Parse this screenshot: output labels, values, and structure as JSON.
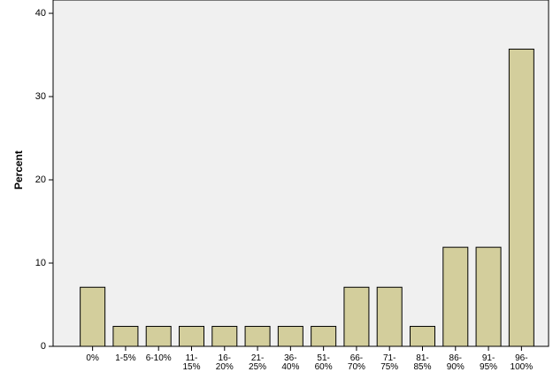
{
  "chart_data": {
    "type": "bar",
    "y_label": "Percent",
    "categories": [
      "0%",
      "1-5%",
      "6-10%",
      "11-\n15%",
      "16-\n20%",
      "21-\n25%",
      "36-\n40%",
      "51-\n60%",
      "66-\n70%",
      "71-\n75%",
      "81-\n85%",
      "86-\n90%",
      "91-\n95%",
      "96-\n100%"
    ],
    "values": [
      7.1,
      2.4,
      2.4,
      2.4,
      2.4,
      2.4,
      2.4,
      2.4,
      7.1,
      7.1,
      2.4,
      11.9,
      11.9,
      35.7
    ],
    "color": "#d3ce9c",
    "ylim": [
      0,
      41.6
    ],
    "yticks": [
      0,
      10,
      20,
      30,
      40
    ],
    "grid": false
  }
}
